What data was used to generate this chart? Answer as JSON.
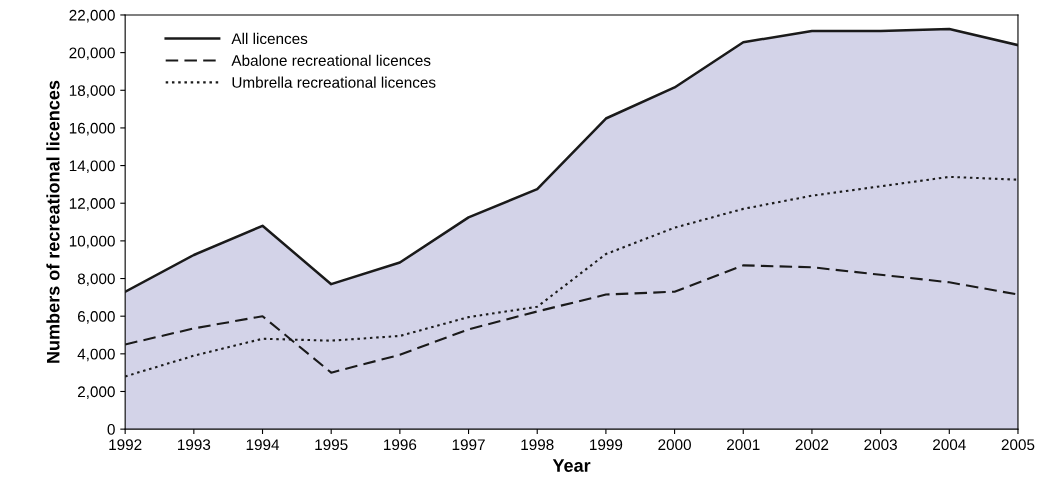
{
  "chart_data": {
    "type": "line",
    "xlabel": "Year",
    "ylabel": "Numbers of recreational licences",
    "x": [
      1992,
      1993,
      1994,
      1995,
      1996,
      1997,
      1998,
      1999,
      2000,
      2001,
      2002,
      2003,
      2004,
      2005
    ],
    "series": [
      {
        "name": "All licences",
        "type": "area",
        "color": "#d3d3e8",
        "line_style": "solid",
        "values": [
          7300,
          9250,
          10800,
          7700,
          8850,
          11250,
          12750,
          16500,
          18150,
          20550,
          21150,
          21150,
          21250,
          20400
        ]
      },
      {
        "name": "Abalone recreational licences",
        "color": "#1a1a1a",
        "line_style": "dashed",
        "values": [
          4500,
          5350,
          6000,
          3000,
          3950,
          5300,
          6250,
          7150,
          7300,
          8700,
          8600,
          8200,
          7800,
          7150
        ]
      },
      {
        "name": "Umbrella recreational licences",
        "color": "#1a1a1a",
        "line_style": "dotted",
        "values": [
          2800,
          3900,
          4800,
          4700,
          4950,
          5950,
          6500,
          9300,
          10700,
          11700,
          12400,
          12900,
          13400,
          13250
        ]
      }
    ],
    "xlim": [
      1992,
      2005
    ],
    "xticks": [
      1992,
      1993,
      1994,
      1995,
      1996,
      1997,
      1998,
      1999,
      2000,
      2001,
      2002,
      2003,
      2004,
      2005
    ],
    "ylim": [
      0,
      22000
    ],
    "yticks": [
      0,
      {
        "value": 2000,
        "label": "2,000"
      },
      {
        "value": 4000,
        "label": "4,000"
      },
      {
        "value": 6000,
        "label": "6,000"
      },
      {
        "value": 8000,
        "label": "8,000"
      },
      {
        "value": 10000,
        "label": "10,000"
      },
      {
        "value": 12000,
        "label": "12,000"
      },
      {
        "value": 14000,
        "label": "14,000"
      },
      {
        "value": 16000,
        "label": "16,000"
      },
      {
        "value": 18000,
        "label": "18,000"
      },
      {
        "value": 20000,
        "label": "20,000"
      },
      {
        "value": 22000,
        "label": "22,000"
      }
    ],
    "grid": false,
    "legend": "top left",
    "marker": "none"
  }
}
